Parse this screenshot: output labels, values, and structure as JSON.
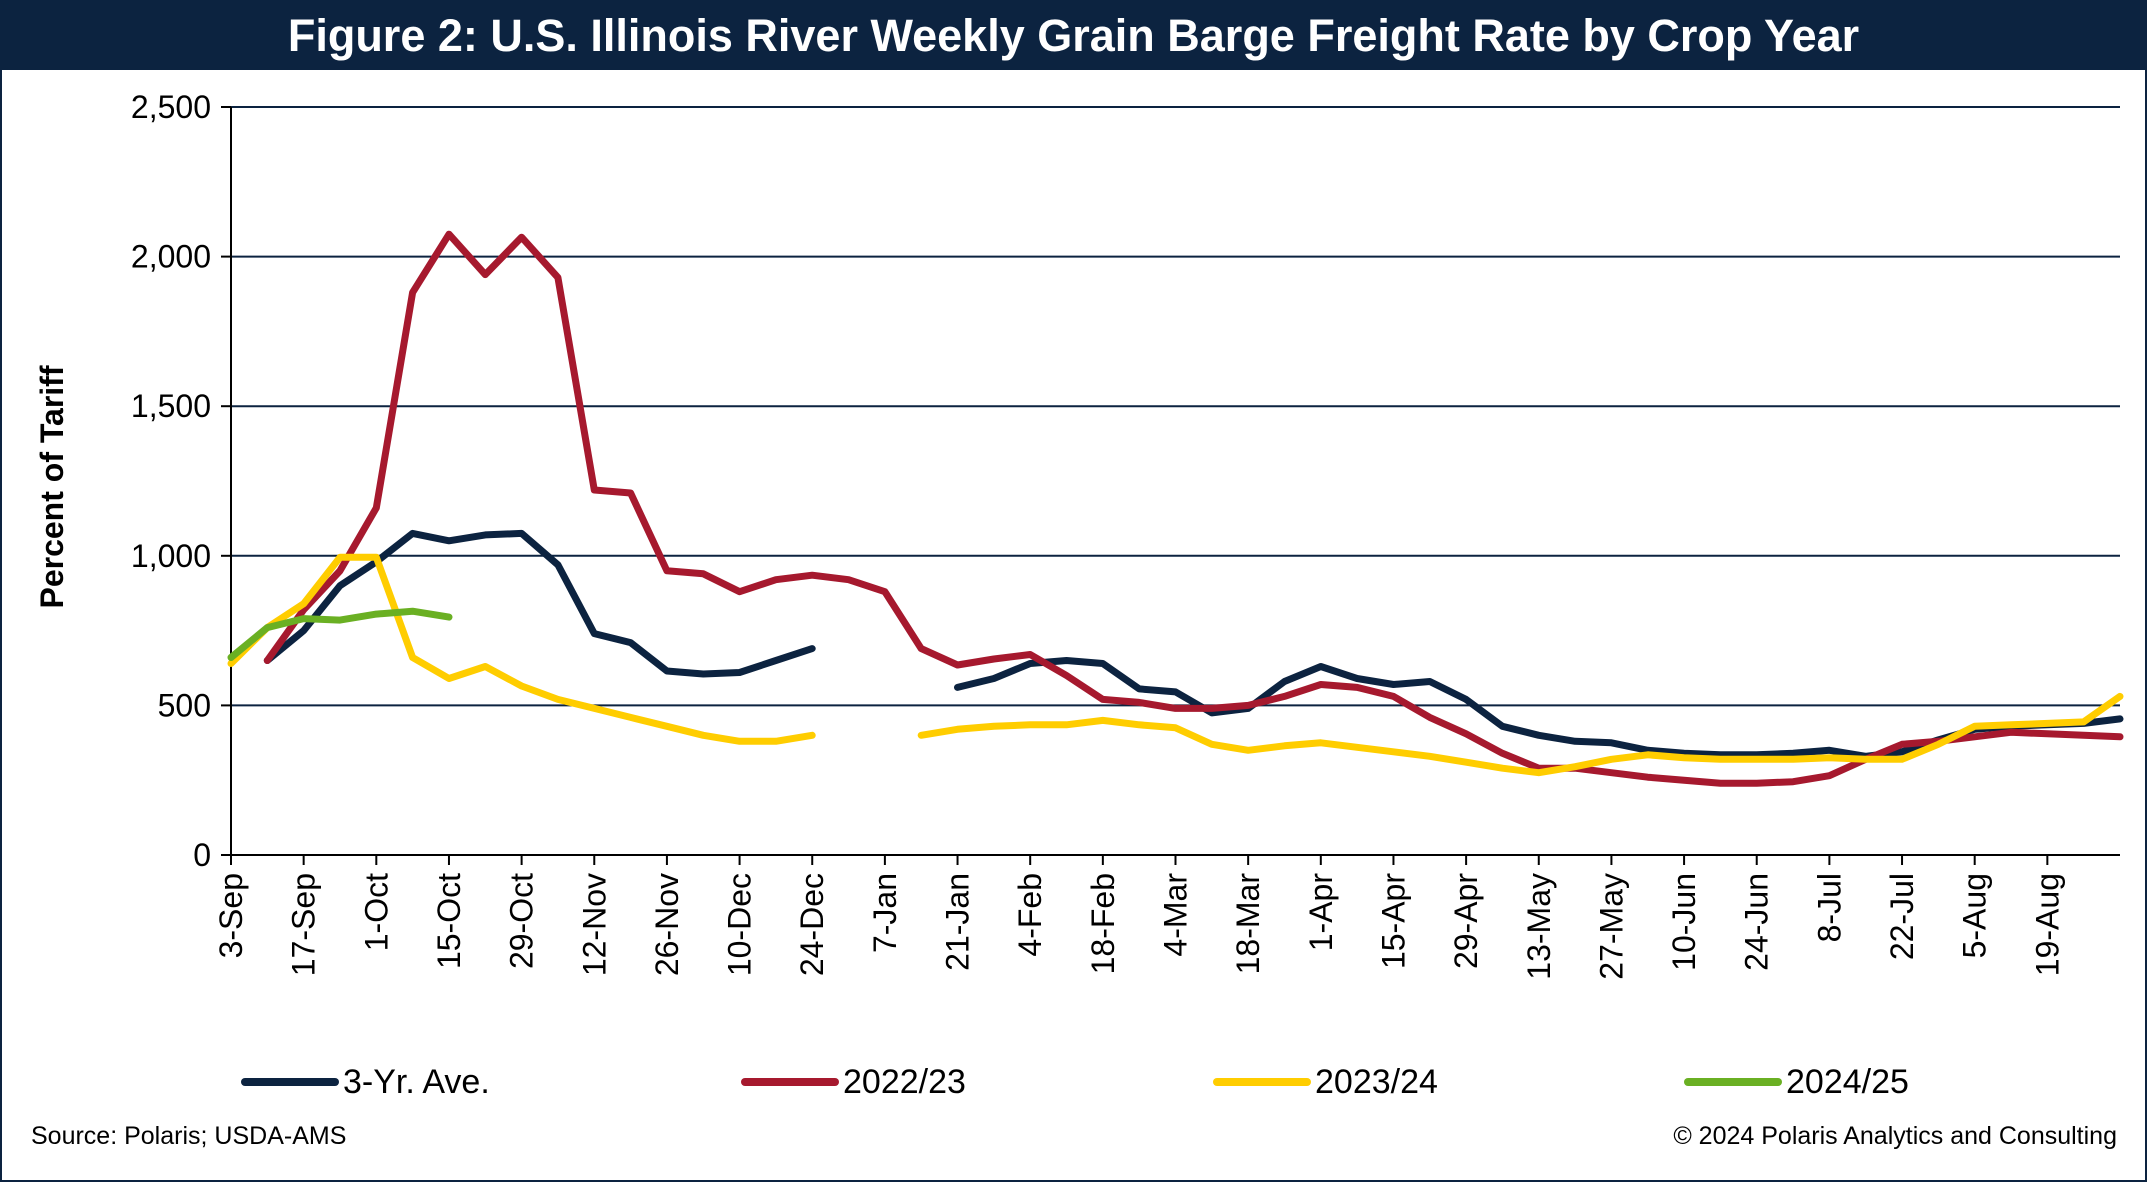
{
  "footer": {
    "source": "Source: Polaris; USDA-AMS",
    "copyright": "© 2024 Polaris Analytics and Consulting"
  },
  "chart_data": {
    "type": "line",
    "title": "Figure 2: U.S. Illinois River Weekly Grain Barge Freight Rate by Crop Year",
    "xlabel": "",
    "ylabel": "Percent of Tariff",
    "ylim": [
      0,
      2500
    ],
    "yticks": [
      0,
      500,
      1000,
      1500,
      2000,
      2500
    ],
    "ytick_labels": [
      "0",
      "500",
      "1,000",
      "1,500",
      "2,000",
      "2,500"
    ],
    "grid": true,
    "legend_position": "bottom",
    "x_tick_labels": [
      "3-Sep",
      "17-Sep",
      "1-Oct",
      "15-Oct",
      "29-Oct",
      "12-Nov",
      "26-Nov",
      "10-Dec",
      "24-Dec",
      "7-Jan",
      "21-Jan",
      "4-Feb",
      "18-Feb",
      "4-Mar",
      "18-Mar",
      "1-Apr",
      "15-Apr",
      "29-Apr",
      "13-May",
      "27-May",
      "10-Jun",
      "24-Jun",
      "8-Jul",
      "22-Jul",
      "5-Aug",
      "19-Aug"
    ],
    "weeks_total": 53,
    "series": [
      {
        "name": "3-Yr. Ave.",
        "color": "#0c2340",
        "values": [
          null,
          650,
          750,
          900,
          980,
          1075,
          1050,
          1070,
          1075,
          970,
          740,
          710,
          615,
          605,
          610,
          650,
          690,
          null,
          null,
          null,
          560,
          590,
          640,
          650,
          640,
          555,
          545,
          475,
          490,
          580,
          630,
          590,
          570,
          580,
          520,
          430,
          400,
          380,
          375,
          350,
          340,
          335,
          335,
          340,
          350,
          330,
          345,
          385,
          420,
          430,
          435,
          440,
          455
        ]
      },
      {
        "name": "2022/23",
        "color": "#a6192e",
        "values": [
          null,
          650,
          820,
          950,
          1160,
          1880,
          2075,
          1940,
          2065,
          1930,
          1220,
          1210,
          950,
          940,
          880,
          920,
          935,
          920,
          880,
          690,
          635,
          655,
          670,
          600,
          520,
          510,
          490,
          490,
          500,
          530,
          570,
          560,
          530,
          460,
          405,
          340,
          290,
          290,
          275,
          260,
          250,
          240,
          240,
          245,
          265,
          320,
          370,
          380,
          395,
          410,
          405,
          400,
          395
        ]
      },
      {
        "name": "2023/24",
        "color": "#ffcd00",
        "values": [
          640,
          760,
          840,
          995,
          995,
          660,
          590,
          630,
          565,
          520,
          490,
          460,
          430,
          400,
          380,
          380,
          400,
          null,
          null,
          400,
          420,
          430,
          435,
          435,
          450,
          435,
          425,
          370,
          350,
          365,
          375,
          360,
          345,
          330,
          310,
          290,
          275,
          295,
          320,
          335,
          325,
          320,
          320,
          320,
          325,
          320,
          320,
          370,
          430,
          435,
          440,
          445,
          530
        ]
      },
      {
        "name": "2024/25",
        "color": "#6ab023",
        "values": [
          660,
          760,
          790,
          785,
          805,
          815,
          795
        ]
      }
    ]
  }
}
